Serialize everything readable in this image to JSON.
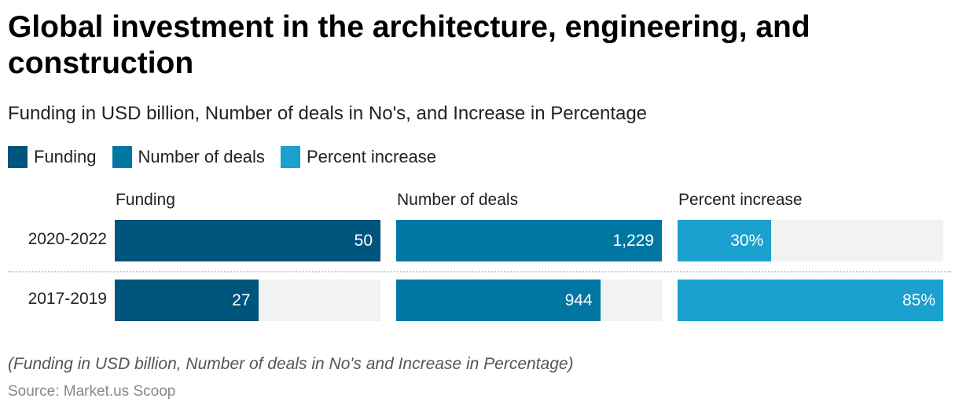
{
  "title": "Global investment in the architecture, engineering, and construction",
  "subtitle": "Funding in USD billion, Number of deals in No's, and Increase in Percentage",
  "note": "(Funding in USD billion, Number of deals in No's and Increase in Percentage)",
  "source": "Source: Market.us Scoop",
  "chart_data": {
    "type": "bar",
    "orientation": "horizontal",
    "layout": "small-multiples",
    "title": "Global investment in the architecture, engineering, and construction",
    "subtitle": "Funding in USD billion, Number of deals in No's, and Increase in Percentage",
    "categories": [
      "2020-2022",
      "2017-2019"
    ],
    "legend": {
      "placement": "top-left",
      "entries": [
        "Funding",
        "Number of deals",
        "Percent increase"
      ]
    },
    "series": [
      {
        "name": "Funding",
        "color": "#00557c",
        "values": [
          50,
          27
        ],
        "labels": [
          "50",
          "27"
        ],
        "max": 50
      },
      {
        "name": "Number of deals",
        "color": "#0077a3",
        "values": [
          1229,
          944
        ],
        "labels": [
          "1,229",
          "944"
        ],
        "max": 1229
      },
      {
        "name": "Percent increase",
        "color": "#1aa1ce",
        "values": [
          30,
          85
        ],
        "labels": [
          "30%",
          "85%"
        ],
        "max": 85
      }
    ],
    "grid": false,
    "track_color": "#f2f2f2"
  }
}
